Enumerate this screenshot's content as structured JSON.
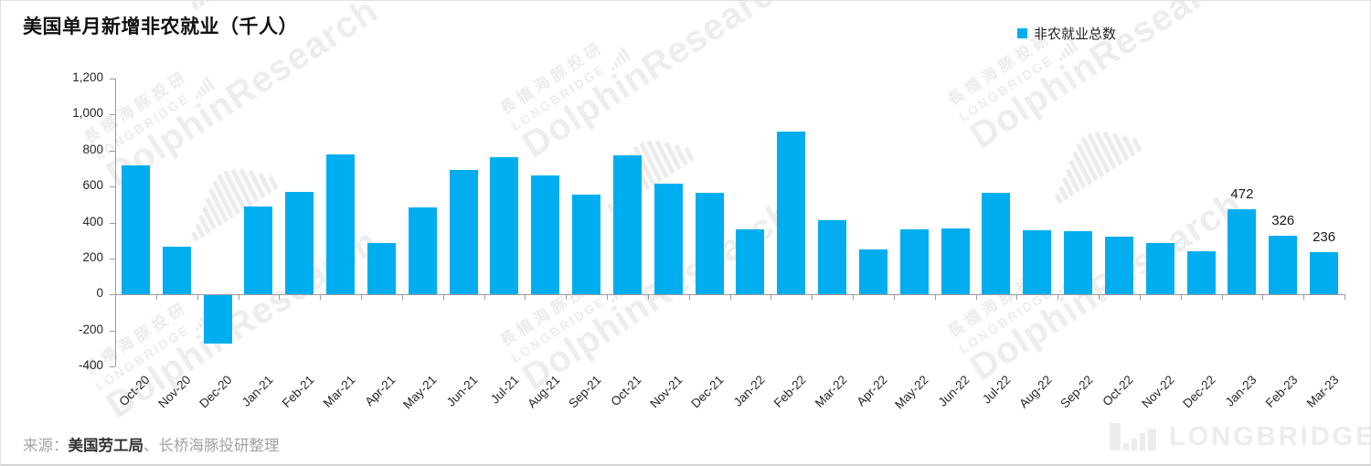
{
  "title": "美国单月新增非农就业（千人）",
  "legend": {
    "label": "非农就业总数",
    "color": "#00AEEF"
  },
  "source": {
    "prefix": "来源：",
    "primary": "美国劳工局",
    "separator": "、",
    "secondary": "长桥海豚投研整理"
  },
  "watermark": {
    "cn": "長橋海豚投研",
    "en": "LONGBRIDGE",
    "brand": "DolphinResearch"
  },
  "footer_logo": {
    "text": "LONGBRIDGE"
  },
  "chart_data": {
    "type": "bar",
    "title": "美国单月新增非农就业（千人）",
    "legend_entries": [
      "非农就业总数"
    ],
    "bar_color": "#00AEEF",
    "ylim": [
      -400,
      1200
    ],
    "y_tick_interval": 200,
    "y_tick_labels": [
      "1,200",
      "1,000",
      "800",
      "600",
      "400",
      "200",
      "0",
      "-200",
      "-400"
    ],
    "grid": "off",
    "legend_position": "top-right",
    "categories": [
      "Oct-20",
      "Nov-20",
      "Dec-20",
      "Jan-21",
      "Feb-21",
      "Mar-21",
      "Apr-21",
      "May-21",
      "Jun-21",
      "Jul-21",
      "Aug-21",
      "Sep-21",
      "Oct-21",
      "Nov-21",
      "Dec-21",
      "Jan-22",
      "Feb-22",
      "Mar-22",
      "Apr-22",
      "May-22",
      "Jun-22",
      "Jul-22",
      "Aug-22",
      "Sep-22",
      "Oct-22",
      "Nov-22",
      "Dec-22",
      "Jan-23",
      "Feb-23",
      "Mar-23"
    ],
    "values": [
      715,
      265,
      -270,
      490,
      570,
      780,
      285,
      485,
      690,
      765,
      660,
      555,
      775,
      615,
      565,
      360,
      905,
      415,
      250,
      360,
      365,
      565,
      355,
      350,
      320,
      285,
      240,
      472,
      326,
      236
    ],
    "data_labels": {
      "27": "472",
      "28": "326",
      "29": "236"
    }
  }
}
